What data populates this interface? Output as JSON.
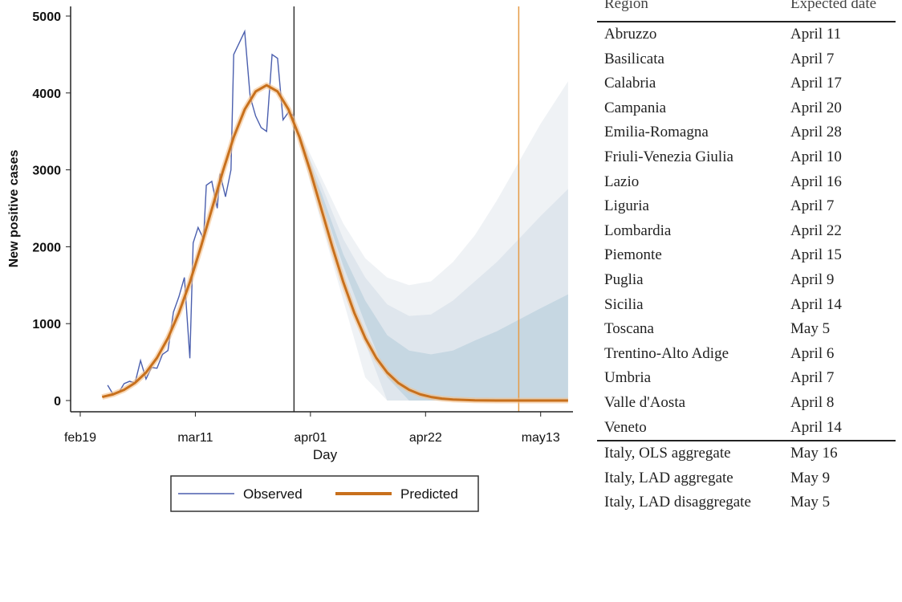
{
  "chart_data": {
    "type": "line",
    "xlabel": "Day",
    "ylabel": "New positive cases",
    "ylim": [
      0,
      5000
    ],
    "yticks": [
      "0",
      "1000",
      "2000",
      "3000",
      "4000",
      "5000"
    ],
    "xticks": [
      {
        "label": "feb19",
        "day": 0
      },
      {
        "label": "mar11",
        "day": 21
      },
      {
        "label": "apr01",
        "day": 42
      },
      {
        "label": "apr22",
        "day": 63
      },
      {
        "label": "may13",
        "day": 84
      }
    ],
    "xlim_days": [
      -2,
      89
    ],
    "vertical_lines": [
      {
        "day": 39,
        "color": "#333333"
      },
      {
        "day": 80,
        "color": "#e59a45"
      }
    ],
    "legend": {
      "position": "bottom",
      "entries": [
        "Observed",
        "Predicted"
      ]
    },
    "series": [
      {
        "name": "Observed",
        "color": "#4b5fae",
        "days": [
          5,
          6,
          7,
          8,
          9,
          10,
          11,
          12,
          13,
          14,
          15,
          16,
          17,
          18,
          19,
          20,
          20.6,
          21.5,
          22.5,
          23,
          24,
          25,
          25.5,
          26.5,
          27.5,
          28,
          29,
          30,
          31,
          32,
          33,
          34,
          35,
          36,
          37,
          38,
          39
        ],
        "values": [
          200,
          80,
          100,
          220,
          250,
          230,
          520,
          280,
          430,
          420,
          600,
          650,
          1150,
          1350,
          1600,
          550,
          2050,
          2250,
          2100,
          2800,
          2850,
          2500,
          2950,
          2650,
          3000,
          4500,
          4650,
          4800,
          3950,
          3700,
          3550,
          3500,
          4500,
          4450,
          3650,
          3750,
          3700
        ]
      },
      {
        "name": "Predicted",
        "color": "#c8701c",
        "days": [
          4,
          6,
          8,
          10,
          12,
          14,
          16,
          18,
          20,
          22,
          24,
          26,
          28,
          30,
          32,
          34,
          36,
          38,
          40,
          42,
          44,
          46,
          48,
          50,
          52,
          54,
          56,
          58,
          60,
          62,
          64,
          66,
          68,
          72,
          76,
          80,
          84,
          89
        ],
        "values": [
          46,
          81,
          140,
          230,
          364,
          555,
          812,
          1140,
          1538,
          1995,
          2487,
          2977,
          3425,
          3785,
          4019,
          4100,
          4019,
          3785,
          3425,
          2977,
          2487,
          1995,
          1538,
          1140,
          812,
          555,
          364,
          230,
          140,
          81,
          46,
          25,
          13,
          3,
          0,
          0,
          0,
          0
        ]
      }
    ],
    "bands": [
      {
        "name": "outer",
        "color": "#eef1f4",
        "days": [
          40,
          44,
          48,
          52,
          56,
          60,
          64,
          68,
          72,
          76,
          80,
          84,
          89
        ],
        "upper": [
          3500,
          2900,
          2300,
          1850,
          1600,
          1500,
          1550,
          1800,
          2150,
          2600,
          3100,
          3600,
          4150
        ],
        "lower": [
          3350,
          2300,
          1300,
          300,
          0,
          0,
          0,
          0,
          0,
          0,
          0,
          0,
          0
        ]
      },
      {
        "name": "middle",
        "color": "#dde5ec",
        "days": [
          40,
          44,
          48,
          52,
          56,
          60,
          64,
          68,
          72,
          76,
          80,
          84,
          89
        ],
        "upper": [
          3450,
          2800,
          2100,
          1600,
          1250,
          1100,
          1120,
          1300,
          1550,
          1800,
          2100,
          2400,
          2750
        ],
        "lower": [
          3380,
          2450,
          1550,
          750,
          0,
          0,
          0,
          0,
          0,
          0,
          0,
          0,
          0
        ]
      },
      {
        "name": "inner",
        "color": "#c4d6e2",
        "days": [
          40,
          44,
          48,
          52,
          56,
          60,
          64,
          68,
          72,
          76,
          80,
          84,
          89
        ],
        "upper": [
          3400,
          2700,
          1900,
          1300,
          850,
          650,
          600,
          650,
          780,
          900,
          1050,
          1200,
          1380
        ],
        "lower": [
          3400,
          2600,
          1750,
          1000,
          300,
          0,
          0,
          0,
          0,
          0,
          0,
          0,
          0
        ]
      }
    ]
  },
  "table": {
    "headers": {
      "region": "Region",
      "date": "Expected date"
    },
    "regions": [
      {
        "region": "Abruzzo",
        "date": "April 11"
      },
      {
        "region": "Basilicata",
        "date": "April 7"
      },
      {
        "region": "Calabria",
        "date": "April 17"
      },
      {
        "region": "Campania",
        "date": "April 20"
      },
      {
        "region": "Emilia-Romagna",
        "date": "April 28"
      },
      {
        "region": "Friuli-Venezia Giulia",
        "date": "April 10"
      },
      {
        "region": "Lazio",
        "date": "April 16"
      },
      {
        "region": "Liguria",
        "date": "April 7"
      },
      {
        "region": "Lombardia",
        "date": "April 22"
      },
      {
        "region": "Piemonte",
        "date": "April 15"
      },
      {
        "region": "Puglia",
        "date": "April 9"
      },
      {
        "region": "Sicilia",
        "date": "April 14"
      },
      {
        "region": "Toscana",
        "date": "May 5"
      },
      {
        "region": "Trentino-Alto Adige",
        "date": "April 6"
      },
      {
        "region": "Umbria",
        "date": "April 7"
      },
      {
        "region": "Valle d'Aosta",
        "date": "April 8"
      },
      {
        "region": "Veneto",
        "date": "April 14"
      }
    ],
    "aggregates": [
      {
        "region": "Italy, OLS aggregate",
        "date": "May 16"
      },
      {
        "region": "Italy, LAD aggregate",
        "date": "May 9"
      },
      {
        "region": "Italy, LAD disaggregate",
        "date": "May 5"
      }
    ]
  }
}
